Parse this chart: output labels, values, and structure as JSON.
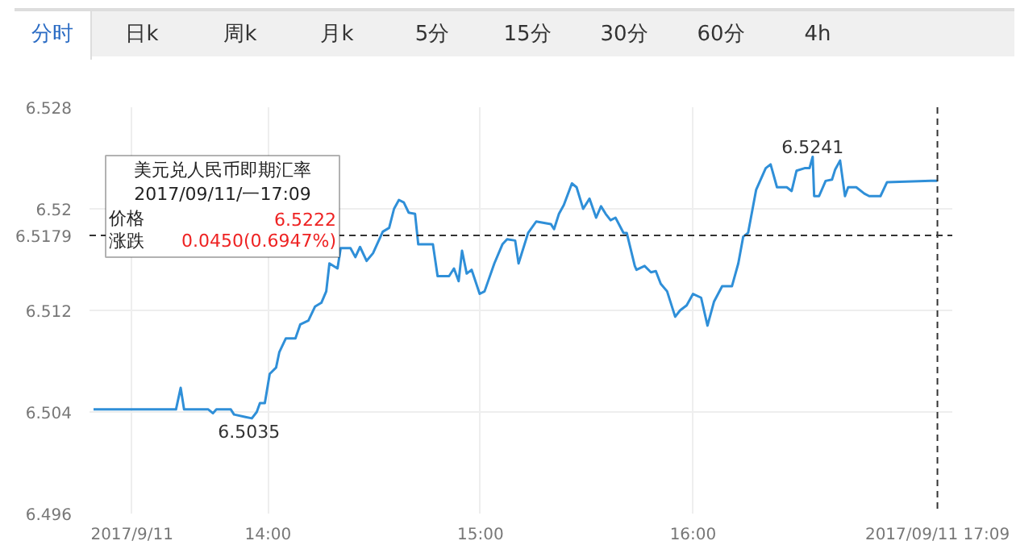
{
  "chart_data": {
    "type": "line",
    "x": [
      13.179,
      13.567,
      13.589,
      13.605,
      13.719,
      13.741,
      13.757,
      13.825,
      13.84,
      13.894,
      13.924,
      13.947,
      13.962,
      13.985,
      14.008,
      14.038,
      14.053,
      14.084,
      14.129,
      14.152,
      14.19,
      14.221,
      14.251,
      14.274,
      14.289,
      14.327,
      14.342,
      14.388,
      14.411,
      14.433,
      14.464,
      14.494,
      14.54,
      14.57,
      14.593,
      14.616,
      14.639,
      14.662,
      14.692,
      14.707,
      14.776,
      14.798,
      14.852,
      14.875,
      14.897,
      14.913,
      14.935,
      14.958,
      14.996,
      15.019,
      15.065,
      15.103,
      15.125,
      15.163,
      15.179,
      15.224,
      15.262,
      15.331,
      15.346,
      15.369,
      15.392,
      15.43,
      15.452,
      15.483,
      15.513,
      15.544,
      15.567,
      15.589,
      15.612,
      15.635,
      15.673,
      15.688,
      15.726,
      15.734,
      15.772,
      15.802,
      15.825,
      15.848,
      15.878,
      15.916,
      15.939,
      15.97,
      16.0,
      16.038,
      16.068,
      16.099,
      16.137,
      16.183,
      16.213,
      16.236,
      16.259,
      16.297,
      16.342,
      16.365,
      16.395,
      16.441,
      16.464,
      16.487,
      16.525,
      16.548,
      16.563,
      16.57,
      16.593,
      16.624,
      16.654,
      16.669,
      16.692,
      16.715,
      16.73,
      16.768,
      16.806,
      16.829,
      16.882,
      16.913,
      17.12,
      17.15
    ],
    "series": [
      {
        "color": "#2f8fd8",
        "values": [
          6.5042,
          6.5042,
          6.5059,
          6.5042,
          6.5042,
          6.5039,
          6.5042,
          6.5042,
          6.5038,
          6.5036,
          6.5035,
          6.504,
          6.5047,
          6.5047,
          6.507,
          6.5075,
          6.5087,
          6.5098,
          6.5098,
          6.5109,
          6.5112,
          6.5123,
          6.5126,
          6.5135,
          6.5157,
          6.5153,
          6.5169,
          6.5169,
          6.5162,
          6.517,
          6.5159,
          6.5165,
          6.5182,
          6.5185,
          6.52,
          6.5207,
          6.5205,
          6.5197,
          6.5196,
          6.5172,
          6.5172,
          6.5147,
          6.5147,
          6.5153,
          6.5143,
          6.5167,
          6.5149,
          6.5152,
          6.5133,
          6.5135,
          6.5157,
          6.5172,
          6.5176,
          6.5175,
          6.5157,
          6.5181,
          6.519,
          6.5188,
          6.5184,
          6.5196,
          6.5203,
          6.522,
          6.5217,
          6.52,
          6.5208,
          6.5193,
          6.5202,
          6.5196,
          6.5191,
          6.5193,
          6.5181,
          6.5181,
          6.5155,
          6.5152,
          6.5155,
          6.515,
          6.5151,
          6.5141,
          6.5135,
          6.5115,
          6.512,
          6.5124,
          6.5133,
          6.513,
          6.5108,
          6.5127,
          6.5139,
          6.5139,
          6.5157,
          6.5178,
          6.5181,
          6.5215,
          6.5232,
          6.5235,
          6.5217,
          6.5217,
          6.5214,
          6.523,
          6.5232,
          6.5232,
          6.5241,
          6.521,
          6.521,
          6.5222,
          6.5223,
          6.5231,
          6.5238,
          6.521,
          6.5217,
          6.5217,
          6.5212,
          6.521,
          6.521,
          6.5221,
          6.5222,
          6.5222
        ]
      }
    ],
    "xlim": [
      13.16,
      17.22
    ],
    "ylim": [
      6.496,
      6.528
    ],
    "xticks": [
      {
        "value": 13.36,
        "label": "2017/9/11"
      },
      {
        "value": 14,
        "label": "14:00"
      },
      {
        "value": 15,
        "label": "15:00"
      },
      {
        "value": 16,
        "label": "16:00"
      }
    ],
    "yticks": [
      6.496,
      6.504,
      6.512,
      6.52,
      6.528
    ],
    "grid": true,
    "marker": "none",
    "line_style": "solid",
    "ref_lines": [
      {
        "axis": "y",
        "value": 6.5179,
        "label": "6.5179",
        "color": "#333333",
        "line_style": "dashed"
      },
      {
        "axis": "x",
        "value": 17.15,
        "label": "2017/09/11 17:09",
        "color": "#333333",
        "line_style": "dashed"
      }
    ],
    "annotations": [
      "分时",
      "日k",
      "周k",
      "月k",
      "5分",
      "15分",
      "30分",
      "60分",
      "4h",
      "美元兑人民币即期汇率",
      "2017/09/11/一17:09",
      "价格",
      "6.5222",
      "涨跌",
      "0.0450(0.6947%)",
      {
        "text": "6.5241",
        "x": 16.563,
        "y": 6.5241
      },
      {
        "text": "6.5035",
        "x": 13.91,
        "y": 6.5035
      }
    ]
  }
}
